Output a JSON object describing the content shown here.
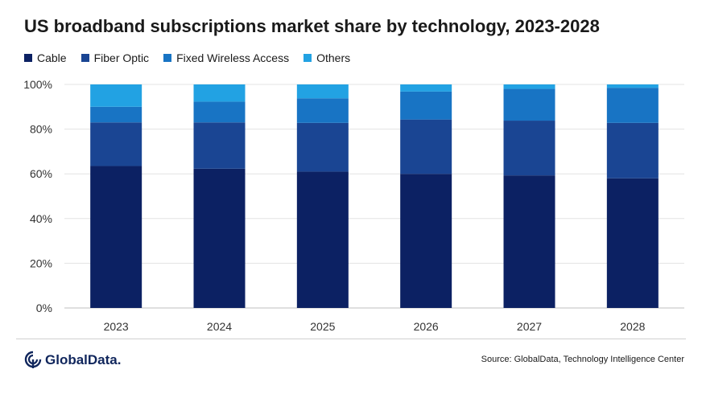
{
  "title": "US broadband subscriptions market share by technology, 2023-2028",
  "logo_text": "GlobalData.",
  "source": "Source: GlobalData, Technology Intelligence Center",
  "chart_data": {
    "type": "bar",
    "stacked": true,
    "title": "US broadband subscriptions market share by technology, 2023-2028",
    "xlabel": "",
    "ylabel": "",
    "categories": [
      "2023",
      "2024",
      "2025",
      "2026",
      "2027",
      "2028"
    ],
    "ylim": [
      0,
      100
    ],
    "y_ticks": [
      0,
      20,
      40,
      60,
      80,
      100
    ],
    "y_tick_labels": [
      "0%",
      "20%",
      "40%",
      "60%",
      "80%",
      "100%"
    ],
    "grid": true,
    "legend_position": "top-left",
    "series": [
      {
        "name": "Cable",
        "color": "#0c2163",
        "values": [
          63.5,
          62.3,
          61.0,
          60.0,
          59.3,
          58.0
        ]
      },
      {
        "name": "Fiber Optic",
        "color": "#1a4593",
        "values": [
          19.5,
          20.7,
          21.8,
          24.3,
          24.5,
          24.8
        ]
      },
      {
        "name": "Fixed Wireless Access",
        "color": "#1874c4",
        "values": [
          7.0,
          9.3,
          11.0,
          12.5,
          14.2,
          15.7
        ]
      },
      {
        "name": "Others",
        "color": "#22a2e3",
        "values": [
          10.0,
          7.7,
          6.2,
          3.2,
          2.0,
          1.5
        ]
      }
    ]
  }
}
